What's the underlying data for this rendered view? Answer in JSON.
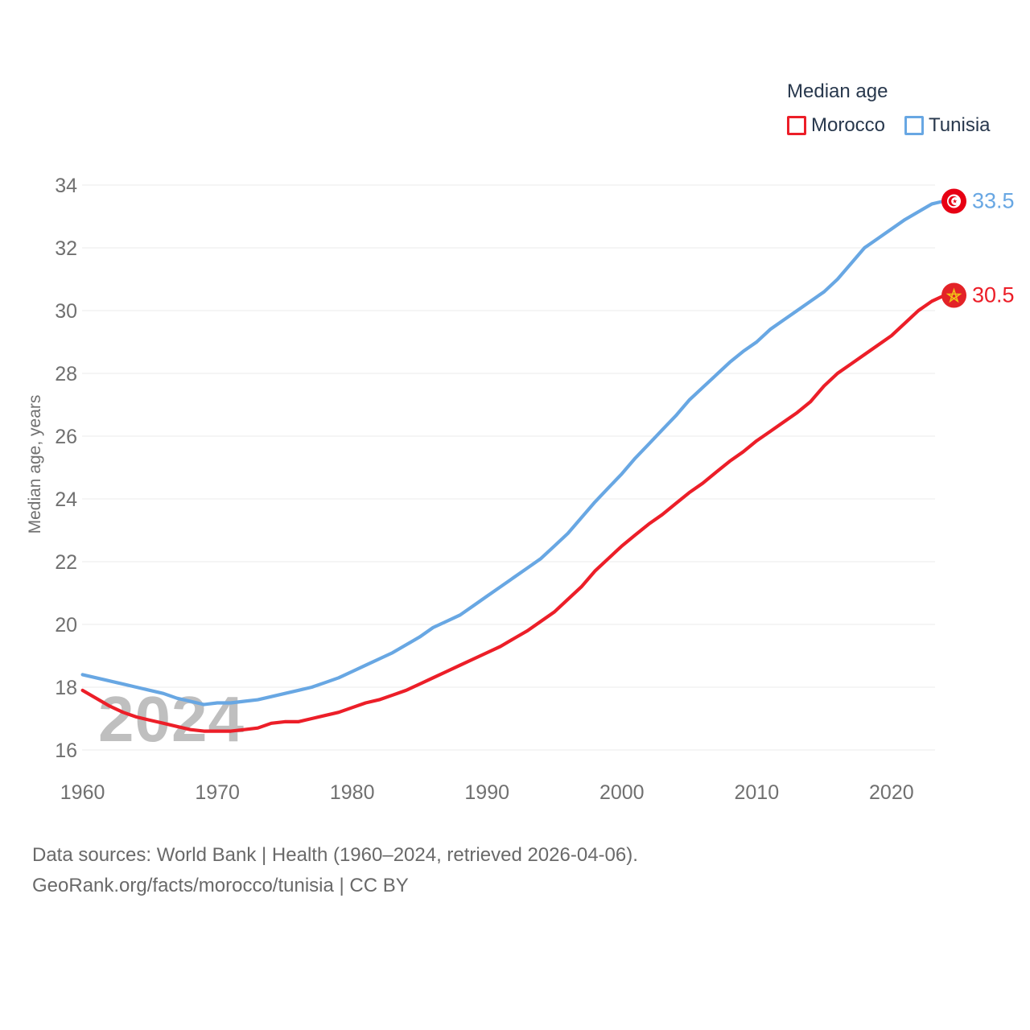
{
  "watermark": "2024",
  "legend": {
    "title": "Median age",
    "items": [
      {
        "label": "Morocco",
        "color": "#ec1e28"
      },
      {
        "label": "Tunisia",
        "color": "#68a7e3"
      }
    ]
  },
  "y_axis": {
    "title": "Median age, years",
    "ticks": [
      16,
      18,
      20,
      22,
      24,
      26,
      28,
      30,
      32,
      34
    ]
  },
  "x_axis": {
    "ticks": [
      1960,
      1970,
      1980,
      1990,
      2000,
      2010,
      2020
    ]
  },
  "footer": {
    "line1": "Data sources: World Bank | Health (1960–2024, retrieved 2026-04-06).",
    "line2": "GeoRank.org/facts/morocco/tunisia | CC BY"
  },
  "chart_data": {
    "type": "line",
    "title": "Median age",
    "ylabel": "Median age, years",
    "ylim": [
      16,
      34
    ],
    "xlim": [
      1960,
      2024
    ],
    "grid": "horizontal-only",
    "legend_position": "top-right",
    "x": [
      1960,
      1961,
      1962,
      1963,
      1964,
      1965,
      1966,
      1967,
      1968,
      1969,
      1970,
      1971,
      1972,
      1973,
      1974,
      1975,
      1976,
      1977,
      1978,
      1979,
      1980,
      1981,
      1982,
      1983,
      1984,
      1985,
      1986,
      1987,
      1988,
      1989,
      1990,
      1991,
      1992,
      1993,
      1994,
      1995,
      1996,
      1997,
      1998,
      1999,
      2000,
      2001,
      2002,
      2003,
      2004,
      2005,
      2006,
      2007,
      2008,
      2009,
      2010,
      2011,
      2012,
      2013,
      2014,
      2015,
      2016,
      2017,
      2018,
      2019,
      2020,
      2021,
      2022,
      2023,
      2024
    ],
    "series": [
      {
        "name": "Morocco",
        "color": "#ec1e28",
        "end_label": "30.5",
        "flag": "morocco-flag",
        "values": [
          17.9,
          17.65,
          17.4,
          17.2,
          17.05,
          16.95,
          16.85,
          16.75,
          16.65,
          16.6,
          16.6,
          16.6,
          16.65,
          16.7,
          16.85,
          16.9,
          16.9,
          17.0,
          17.1,
          17.2,
          17.35,
          17.5,
          17.6,
          17.75,
          17.9,
          18.1,
          18.3,
          18.5,
          18.7,
          18.9,
          19.1,
          19.3,
          19.55,
          19.8,
          20.1,
          20.4,
          20.8,
          21.2,
          21.7,
          22.1,
          22.5,
          22.85,
          23.2,
          23.5,
          23.85,
          24.2,
          24.5,
          24.85,
          25.2,
          25.5,
          25.85,
          26.15,
          26.45,
          26.75,
          27.1,
          27.6,
          28.0,
          28.3,
          28.6,
          28.9,
          29.2,
          29.6,
          30.0,
          30.3,
          30.5
        ]
      },
      {
        "name": "Tunisia",
        "color": "#68a7e3",
        "end_label": "33.5",
        "flag": "tunisia-flag",
        "values": [
          18.4,
          18.3,
          18.2,
          18.1,
          18.0,
          17.9,
          17.8,
          17.65,
          17.55,
          17.45,
          17.5,
          17.5,
          17.55,
          17.6,
          17.7,
          17.8,
          17.9,
          18.0,
          18.15,
          18.3,
          18.5,
          18.7,
          18.9,
          19.1,
          19.35,
          19.6,
          19.9,
          20.1,
          20.3,
          20.6,
          20.9,
          21.2,
          21.5,
          21.8,
          22.1,
          22.5,
          22.9,
          23.4,
          23.9,
          24.35,
          24.8,
          25.3,
          25.75,
          26.2,
          26.65,
          27.15,
          27.55,
          27.95,
          28.35,
          28.7,
          29.0,
          29.4,
          29.7,
          30.0,
          30.3,
          30.6,
          31.0,
          31.5,
          32.0,
          32.3,
          32.6,
          32.9,
          33.15,
          33.4,
          33.5
        ]
      }
    ]
  }
}
